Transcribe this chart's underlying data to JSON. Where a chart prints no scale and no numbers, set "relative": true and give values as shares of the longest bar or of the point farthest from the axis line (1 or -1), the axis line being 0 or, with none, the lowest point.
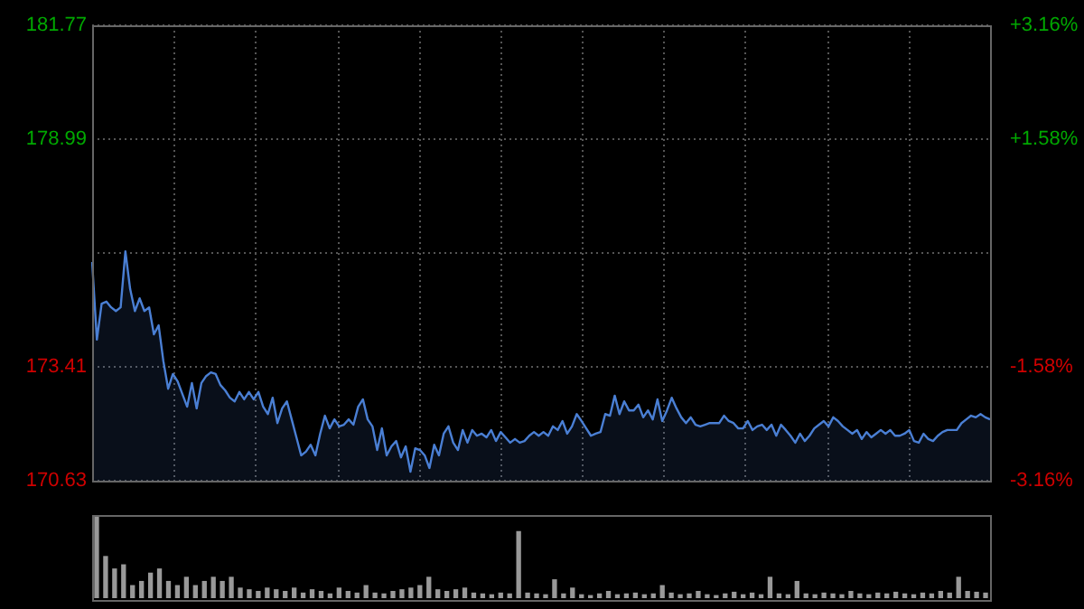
{
  "chart_data": [
    {
      "type": "area",
      "categories": [
        null,
        null,
        null,
        null,
        null,
        null,
        null,
        null,
        null,
        null,
        null,
        null,
        null,
        null,
        null,
        null,
        null,
        null,
        null,
        null,
        null,
        null,
        null,
        null,
        null,
        null,
        null,
        null,
        null,
        null,
        null,
        null,
        null,
        null,
        null,
        null,
        null,
        null,
        null,
        null,
        null,
        null,
        null,
        null,
        null,
        null,
        null,
        null,
        null,
        null,
        null,
        null,
        null,
        null,
        null,
        null,
        null,
        null,
        null,
        null,
        null,
        null,
        null,
        null,
        null,
        null,
        null,
        null,
        null,
        null,
        null,
        null,
        null,
        null,
        null,
        null,
        null,
        null,
        null,
        null,
        null,
        null,
        null,
        null,
        null,
        null,
        null,
        null,
        null,
        null,
        null,
        null,
        null,
        null,
        null,
        null,
        null,
        null,
        null,
        null,
        null,
        null,
        null,
        null,
        null,
        null,
        null,
        null,
        null,
        null,
        null,
        null,
        null,
        null,
        null,
        null,
        null,
        null,
        null,
        null,
        null,
        null,
        null,
        null,
        null,
        null,
        null,
        null,
        null,
        null,
        null,
        null,
        null,
        null,
        null,
        null,
        null,
        null,
        null,
        null,
        null,
        null,
        null,
        null,
        null,
        null,
        null,
        null,
        null,
        null,
        null,
        null,
        null,
        null,
        null,
        null,
        null,
        null,
        null,
        null,
        null,
        null,
        null,
        null,
        null,
        null,
        null,
        null,
        null,
        null,
        null,
        null,
        null,
        null,
        null,
        null,
        null,
        null,
        null,
        null,
        null,
        null,
        null,
        null,
        null,
        null,
        null,
        null,
        null,
        null
      ],
      "series": [
        {
          "color": "#4a7fd4",
          "values": [
            175.98,
            174.08,
            174.96,
            175.01,
            174.87,
            174.78,
            174.87,
            176.24,
            175.32,
            174.78,
            175.09,
            174.78,
            174.87,
            174.21,
            174.43,
            173.55,
            172.88,
            173.24,
            173.06,
            172.75,
            172.44,
            173.02,
            172.4,
            173.02,
            173.19,
            173.28,
            173.24,
            172.97,
            172.84,
            172.66,
            172.57,
            172.8,
            172.62,
            172.8,
            172.62,
            172.8,
            172.44,
            172.26,
            172.66,
            172.04,
            172.4,
            172.57,
            172.13,
            171.69,
            171.25,
            171.34,
            171.51,
            171.25,
            171.78,
            172.22,
            171.91,
            172.13,
            171.96,
            172.0,
            172.13,
            172.0,
            172.44,
            172.62,
            172.13,
            171.96,
            171.38,
            171.91,
            171.25,
            171.47,
            171.6,
            171.2,
            171.47,
            170.85,
            171.42,
            171.38,
            171.25,
            170.94,
            171.51,
            171.25,
            171.78,
            171.96,
            171.56,
            171.38,
            171.87,
            171.56,
            171.87,
            171.73,
            171.78,
            171.69,
            171.87,
            171.6,
            171.82,
            171.69,
            171.56,
            171.65,
            171.56,
            171.6,
            171.73,
            171.82,
            171.73,
            171.82,
            171.73,
            171.96,
            171.87,
            172.09,
            171.78,
            171.96,
            172.26,
            172.09,
            171.91,
            171.73,
            171.78,
            171.82,
            172.26,
            172.22,
            172.71,
            172.26,
            172.57,
            172.35,
            172.35,
            172.49,
            172.18,
            172.35,
            172.13,
            172.62,
            172.09,
            172.35,
            172.66,
            172.4,
            172.18,
            172.04,
            172.18,
            172.0,
            171.96,
            172.0,
            172.04,
            172.04,
            172.04,
            172.22,
            172.09,
            172.04,
            171.91,
            171.91,
            172.09,
            171.87,
            171.96,
            172.0,
            171.87,
            172.0,
            171.73,
            172.0,
            171.87,
            171.73,
            171.56,
            171.78,
            171.6,
            171.73,
            171.91,
            172.0,
            172.09,
            171.96,
            172.18,
            172.09,
            171.96,
            171.87,
            171.78,
            171.87,
            171.65,
            171.82,
            171.69,
            171.78,
            171.87,
            171.78,
            171.87,
            171.73,
            171.73,
            171.78,
            171.87,
            171.6,
            171.56,
            171.78,
            171.65,
            171.6,
            171.73,
            171.82,
            171.87,
            171.87,
            171.87,
            172.04,
            172.13,
            172.22,
            172.18,
            172.26,
            172.18,
            172.13
          ]
        }
      ],
      "ylim": [
        170.63,
        181.77
      ],
      "yticks": [
        170.63,
        173.41,
        {
          "value": 176.2,
          "label": null
        },
        178.99,
        181.77
      ],
      "y2lim": [
        -3.16,
        3.16
      ],
      "y2ticks": [
        {
          "value": -3.16,
          "label": "-3.16%"
        },
        {
          "value": -1.58,
          "label": "-1.58%"
        },
        {
          "value": 1.58,
          "label": "+1.58%"
        },
        {
          "value": 3.16,
          "label": "+3.16%"
        }
      ],
      "grid": true,
      "tick_labels": "y"
    },
    {
      "type": "bar",
      "relative": true,
      "categories": [
        null,
        null,
        null,
        null,
        null,
        null,
        null,
        null,
        null,
        null,
        null,
        null,
        null,
        null,
        null,
        null,
        null,
        null,
        null,
        null,
        null,
        null,
        null,
        null,
        null,
        null,
        null,
        null,
        null,
        null,
        null,
        null,
        null,
        null,
        null,
        null,
        null,
        null,
        null,
        null,
        null,
        null,
        null,
        null,
        null,
        null,
        null,
        null,
        null,
        null,
        null,
        null,
        null,
        null,
        null,
        null,
        null,
        null,
        null,
        null,
        null,
        null,
        null,
        null,
        null,
        null,
        null,
        null,
        null,
        null,
        null,
        null,
        null,
        null,
        null,
        null,
        null,
        null,
        null,
        null,
        null,
        null,
        null,
        null,
        null,
        null,
        null,
        null,
        null,
        null,
        null,
        null,
        null,
        null,
        null,
        null,
        null,
        null,
        null,
        null
      ],
      "series": [
        {
          "color": "#999999",
          "values": [
            1,
            0.5,
            0.35,
            0.4,
            0.15,
            0.2,
            0.3,
            0.35,
            0.2,
            0.15,
            0.25,
            0.15,
            0.2,
            0.25,
            0.2,
            0.25,
            0.12,
            0.1,
            0.08,
            0.12,
            0.1,
            0.08,
            0.12,
            0.06,
            0.1,
            0.08,
            0.05,
            0.12,
            0.08,
            0.06,
            0.15,
            0.06,
            0.05,
            0.08,
            0.1,
            0.12,
            0.15,
            0.25,
            0.1,
            0.08,
            0.1,
            0.12,
            0.06,
            0.05,
            0.04,
            0.06,
            0.05,
            0.8,
            0.06,
            0.05,
            0.04,
            0.22,
            0.05,
            0.12,
            0.04,
            0.03,
            0.05,
            0.08,
            0.04,
            0.05,
            0.06,
            0.04,
            0.05,
            0.15,
            0.06,
            0.04,
            0.05,
            0.08,
            0.04,
            0.03,
            0.05,
            0.07,
            0.04,
            0.06,
            0.04,
            0.25,
            0.05,
            0.04,
            0.2,
            0.05,
            0.04,
            0.06,
            0.05,
            0.04,
            0.08,
            0.05,
            0.04,
            0.06,
            0.05,
            0.07,
            0.05,
            0.04,
            0.06,
            0.05,
            0.08,
            0.06,
            0.25,
            0.08,
            0.07,
            0.06
          ]
        }
      ]
    }
  ]
}
